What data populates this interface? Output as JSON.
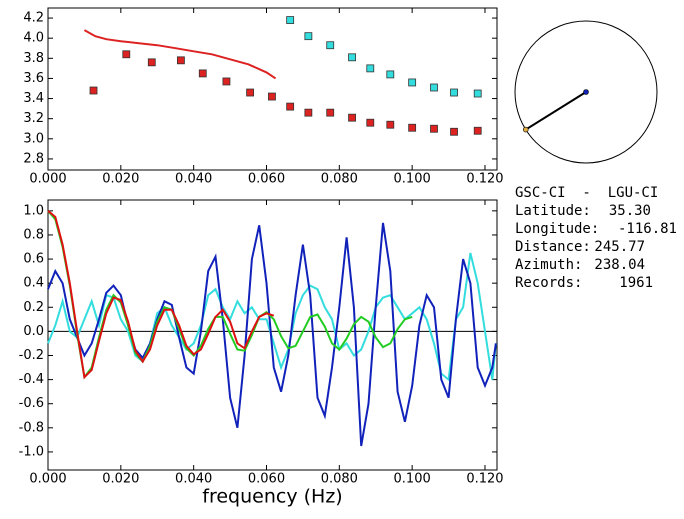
{
  "chart_data": [
    {
      "type": "scatter-line",
      "xlim": [
        0,
        0.1233
      ],
      "ylim": [
        2.69,
        4.3
      ],
      "xticks": [
        {
          "value": 0,
          "label": "0.000"
        },
        {
          "value": 0.02,
          "label": "0.020"
        },
        {
          "value": 0.04,
          "label": "0.040"
        },
        {
          "value": 0.06,
          "label": "0.060"
        },
        {
          "value": 0.08,
          "label": "0.080"
        },
        {
          "value": 0.1,
          "label": "0.100"
        },
        {
          "value": 0.12,
          "label": "0.120"
        }
      ],
      "yticks": [
        {
          "value": 2.8,
          "label": "2.8"
        },
        {
          "value": 3.0,
          "label": "3.0"
        },
        {
          "value": 3.2,
          "label": "3.2"
        },
        {
          "value": 3.4,
          "label": "3.4"
        },
        {
          "value": 3.6,
          "label": "3.6"
        },
        {
          "value": 3.8,
          "label": "3.8"
        },
        {
          "value": 4.0,
          "label": "4.0"
        },
        {
          "value": 4.2,
          "label": "4.2"
        }
      ],
      "series": [
        {
          "style": "marker",
          "color": "#dd2222",
          "x": [
            0.0125,
            0.0215,
            0.0285,
            0.0365,
            0.0425,
            0.049,
            0.0555,
            0.0615,
            0.0665,
            0.0715,
            0.0775,
            0.0835,
            0.0885,
            0.094,
            0.1,
            0.106,
            0.1115,
            0.118
          ],
          "values": [
            3.48,
            3.84,
            3.76,
            3.78,
            3.65,
            3.57,
            3.46,
            3.42,
            3.32,
            3.26,
            3.26,
            3.21,
            3.16,
            3.14,
            3.11,
            3.1,
            3.07,
            3.08
          ]
        },
        {
          "style": "marker",
          "color": "#33dddd",
          "x": [
            0.0665,
            0.0715,
            0.0775,
            0.0835,
            0.0885,
            0.094,
            0.1,
            0.106,
            0.1115,
            0.118
          ],
          "values": [
            4.18,
            4.02,
            3.93,
            3.81,
            3.7,
            3.64,
            3.56,
            3.51,
            3.46,
            3.45
          ]
        },
        {
          "style": "line",
          "color": "#dd2222",
          "x": [
            0.01,
            0.013,
            0.016,
            0.02,
            0.025,
            0.03,
            0.035,
            0.04,
            0.045,
            0.05,
            0.055,
            0.06,
            0.0625
          ],
          "values": [
            4.08,
            4.02,
            3.99,
            3.97,
            3.95,
            3.93,
            3.9,
            3.87,
            3.84,
            3.79,
            3.74,
            3.66,
            3.6
          ]
        }
      ]
    },
    {
      "type": "line",
      "xlim": [
        0,
        0.1233
      ],
      "ylim": [
        -1.15,
        1.09
      ],
      "hline": 0,
      "xlabel": "frequency (Hz)",
      "xticks": [
        {
          "value": 0,
          "label": "0.000"
        },
        {
          "value": 0.02,
          "label": "0.020"
        },
        {
          "value": 0.04,
          "label": "0.040"
        },
        {
          "value": 0.06,
          "label": "0.060"
        },
        {
          "value": 0.08,
          "label": "0.080"
        },
        {
          "value": 0.1,
          "label": "0.100"
        },
        {
          "value": 0.12,
          "label": "0.120"
        }
      ],
      "yticks": [
        {
          "value": -1.0,
          "label": "-1.0"
        },
        {
          "value": -0.8,
          "label": "-0.8"
        },
        {
          "value": -0.6,
          "label": "-0.6"
        },
        {
          "value": -0.4,
          "label": "-0.4"
        },
        {
          "value": -0.2,
          "label": "-0.2"
        },
        {
          "value": 0,
          "label": "0.0"
        },
        {
          "value": 0.2,
          "label": "0.2"
        },
        {
          "value": 0.4,
          "label": "0.4"
        },
        {
          "value": 0.6,
          "label": "0.6"
        },
        {
          "value": 0.8,
          "label": "0.8"
        },
        {
          "value": 1.0,
          "label": "1.0"
        }
      ],
      "series": [
        {
          "style": "line",
          "color": "#33dddd",
          "x": [
            0,
            0.002,
            0.004,
            0.006,
            0.008,
            0.01,
            0.012,
            0.014,
            0.016,
            0.018,
            0.02,
            0.022,
            0.024,
            0.026,
            0.028,
            0.03,
            0.032,
            0.034,
            0.036,
            0.038,
            0.04,
            0.042,
            0.044,
            0.046,
            0.048,
            0.05,
            0.052,
            0.054,
            0.056,
            0.058,
            0.06,
            0.062,
            0.064,
            0.066,
            0.068,
            0.07,
            0.072,
            0.074,
            0.076,
            0.078,
            0.08,
            0.082,
            0.084,
            0.086,
            0.088,
            0.09,
            0.092,
            0.094,
            0.096,
            0.098,
            0.1,
            0.102,
            0.104,
            0.106,
            0.108,
            0.11,
            0.112,
            0.114,
            0.116,
            0.118,
            0.12,
            0.122,
            0.123
          ],
          "values": [
            -0.1,
            0.05,
            0.25,
            0.0,
            -0.05,
            0.1,
            0.25,
            0.05,
            0.3,
            0.28,
            0.1,
            0.0,
            -0.2,
            -0.25,
            -0.1,
            0.15,
            0.2,
            0.05,
            -0.05,
            -0.15,
            -0.1,
            0.05,
            0.3,
            0.35,
            0.2,
            0.1,
            0.25,
            0.15,
            0.2,
            0.1,
            0.1,
            -0.1,
            -0.3,
            -0.15,
            0.15,
            0.3,
            0.38,
            0.35,
            0.2,
            0.1,
            -0.15,
            -0.1,
            -0.2,
            -0.15,
            0.0,
            0.2,
            0.28,
            0.3,
            0.2,
            0.1,
            0.15,
            0.2,
            0.1,
            -0.1,
            -0.35,
            -0.4,
            0.1,
            0.2,
            0.65,
            0.4,
            0.0,
            -0.4,
            -0.1
          ]
        },
        {
          "style": "line",
          "color": "#1122bb",
          "x": [
            0,
            0.002,
            0.004,
            0.006,
            0.008,
            0.01,
            0.012,
            0.014,
            0.016,
            0.018,
            0.02,
            0.022,
            0.024,
            0.026,
            0.028,
            0.03,
            0.032,
            0.034,
            0.036,
            0.038,
            0.04,
            0.042,
            0.044,
            0.046,
            0.048,
            0.05,
            0.052,
            0.054,
            0.056,
            0.058,
            0.06,
            0.062,
            0.064,
            0.066,
            0.068,
            0.07,
            0.072,
            0.074,
            0.076,
            0.078,
            0.08,
            0.082,
            0.084,
            0.086,
            0.088,
            0.09,
            0.092,
            0.094,
            0.096,
            0.098,
            0.1,
            0.102,
            0.104,
            0.106,
            0.108,
            0.11,
            0.112,
            0.114,
            0.116,
            0.118,
            0.12,
            0.122,
            0.123
          ],
          "values": [
            0.35,
            0.5,
            0.4,
            0.1,
            -0.05,
            -0.2,
            -0.1,
            0.1,
            0.32,
            0.38,
            0.3,
            0.05,
            -0.15,
            -0.22,
            -0.1,
            0.1,
            0.25,
            0.22,
            -0.05,
            -0.3,
            -0.35,
            0.0,
            0.5,
            0.62,
            0.1,
            -0.55,
            -0.8,
            -0.2,
            0.6,
            0.88,
            0.4,
            -0.3,
            -0.5,
            -0.2,
            0.3,
            0.72,
            0.3,
            -0.55,
            -0.7,
            -0.3,
            0.2,
            0.78,
            0.2,
            -0.95,
            -0.6,
            0.2,
            0.9,
            0.5,
            -0.5,
            -0.75,
            -0.45,
            0.05,
            0.3,
            0.2,
            -0.4,
            -0.55,
            0.1,
            0.6,
            0.4,
            -0.3,
            -0.45,
            -0.3,
            -0.1
          ]
        },
        {
          "style": "line",
          "color": "#22cc22",
          "x": [
            0,
            0.002,
            0.004,
            0.006,
            0.008,
            0.01,
            0.012,
            0.014,
            0.016,
            0.018,
            0.02,
            0.022,
            0.024,
            0.026,
            0.028,
            0.03,
            0.032,
            0.034,
            0.036,
            0.038,
            0.04,
            0.042,
            0.044,
            0.046,
            0.048,
            0.05,
            0.052,
            0.054,
            0.056,
            0.058,
            0.06,
            0.062,
            0.064,
            0.066,
            0.068,
            0.07,
            0.072,
            0.074,
            0.076,
            0.078,
            0.08,
            0.082,
            0.084,
            0.086,
            0.088,
            0.09,
            0.092,
            0.094,
            0.096,
            0.098,
            0.1
          ],
          "values": [
            1.0,
            0.93,
            0.7,
            0.38,
            -0.02,
            -0.38,
            -0.3,
            -0.05,
            0.18,
            0.3,
            0.24,
            0.05,
            -0.18,
            -0.25,
            -0.12,
            0.08,
            0.2,
            0.18,
            0.02,
            -0.14,
            -0.2,
            -0.12,
            0.02,
            0.12,
            0.12,
            -0.02,
            -0.15,
            -0.16,
            -0.03,
            0.12,
            0.16,
            0.1,
            -0.04,
            -0.14,
            -0.12,
            0.0,
            0.12,
            0.14,
            0.04,
            -0.1,
            -0.15,
            -0.06,
            0.06,
            0.12,
            0.08,
            -0.05,
            -0.13,
            -0.1,
            0.02,
            0.1,
            0.12
          ]
        },
        {
          "style": "line",
          "color": "#dd1111",
          "x": [
            0,
            0.002,
            0.004,
            0.006,
            0.008,
            0.01,
            0.012,
            0.014,
            0.016,
            0.018,
            0.02,
            0.022,
            0.024,
            0.026,
            0.028,
            0.03,
            0.032,
            0.034,
            0.036,
            0.038,
            0.04,
            0.042,
            0.044,
            0.046,
            0.048,
            0.05,
            0.052,
            0.054,
            0.056,
            0.058,
            0.06,
            0.062
          ],
          "values": [
            1.0,
            0.95,
            0.72,
            0.4,
            0.0,
            -0.38,
            -0.32,
            -0.08,
            0.15,
            0.28,
            0.26,
            0.08,
            -0.16,
            -0.25,
            -0.15,
            0.05,
            0.18,
            0.18,
            0.05,
            -0.12,
            -0.19,
            -0.15,
            -0.02,
            0.12,
            0.18,
            0.08,
            -0.1,
            -0.14,
            0.0,
            0.12,
            0.15,
            0.13
          ]
        }
      ]
    }
  ],
  "info": {
    "station": "GSC-CI  -  LGU-CI",
    "fields": [
      {
        "label": "Latitude:",
        "value": "35.30"
      },
      {
        "label": "Longitude:",
        "value": "-116.81"
      },
      {
        "label": "Distance:",
        "value": "245.77"
      },
      {
        "label": "Azimuth:",
        "value": "238.04"
      },
      {
        "label": "Records:",
        "value": "1961"
      }
    ]
  }
}
